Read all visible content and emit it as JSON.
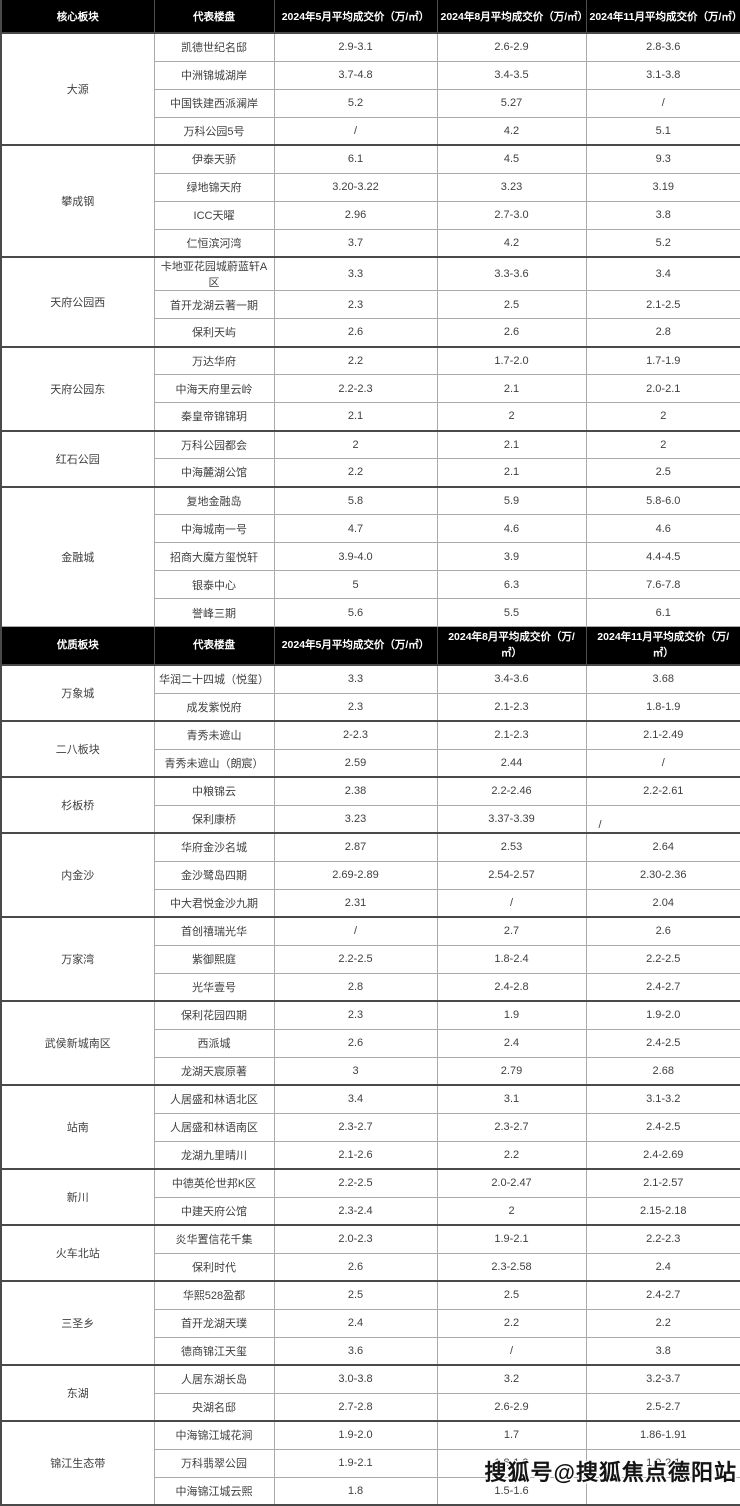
{
  "watermark": {
    "text": "搜狐号@搜狐焦点德阳站"
  },
  "chart_data": [
    {
      "type": "table",
      "columns": [
        "核心板块",
        "代表楼盘",
        "2024年5月平均成交价（万/㎡）",
        "2024年8月平均成交价（万/㎡）",
        "2024年11月平均成交价（万/㎡）"
      ],
      "groups": [
        {
          "area": "大源",
          "rows": [
            [
              "凯德世纪名邸",
              "2.9-3.1",
              "2.6-2.9",
              "2.8-3.6"
            ],
            [
              "中洲锦城湖岸",
              "3.7-4.8",
              "3.4-3.5",
              "3.1-3.8"
            ],
            [
              "中国铁建西派澜岸",
              "5.2",
              "5.27",
              "/"
            ],
            [
              "万科公园5号",
              "/",
              "4.2",
              "5.1"
            ]
          ]
        },
        {
          "area": "攀成钢",
          "rows": [
            [
              "伊泰天骄",
              "6.1",
              "4.5",
              "9.3"
            ],
            [
              "绿地锦天府",
              "3.20-3.22",
              "3.23",
              "3.19"
            ],
            [
              "ICC天曜",
              "2.96",
              "2.7-3.0",
              "3.8"
            ],
            [
              "仁恒滨河湾",
              "3.7",
              "4.2",
              "5.2"
            ]
          ]
        },
        {
          "area": "天府公园西",
          "rows": [
            [
              "卡地亚花园城蔚蓝轩A区",
              "3.3",
              "3.3-3.6",
              "3.4"
            ],
            [
              "首开龙湖云著一期",
              "2.3",
              "2.5",
              "2.1-2.5"
            ],
            [
              "保利天屿",
              "2.6",
              "2.6",
              "2.8"
            ]
          ]
        },
        {
          "area": "天府公园东",
          "rows": [
            [
              "万达华府",
              "2.2",
              "1.7-2.0",
              "1.7-1.9"
            ],
            [
              "中海天府里云岭",
              "2.2-2.3",
              "2.1",
              "2.0-2.1"
            ],
            [
              "秦皇帝锦锦玥",
              "2.1",
              "2",
              "2"
            ]
          ]
        },
        {
          "area": "红石公园",
          "rows": [
            [
              "万科公园都会",
              "2",
              "2.1",
              "2"
            ],
            [
              "中海麓湖公馆",
              "2.2",
              "2.1",
              "2.5"
            ]
          ]
        },
        {
          "area": "金融城",
          "rows": [
            [
              "复地金融岛",
              "5.8",
              "5.9",
              "5.8-6.0"
            ],
            [
              "中海城南一号",
              "4.7",
              "4.6",
              "4.6"
            ],
            [
              "招商大魔方玺悦轩",
              "3.9-4.0",
              "3.9",
              "4.4-4.5"
            ],
            [
              "银泰中心",
              "5",
              "6.3",
              "7.6-7.8"
            ],
            [
              "誉峰三期",
              "5.6",
              "5.5",
              "6.1"
            ]
          ]
        }
      ]
    },
    {
      "type": "table",
      "columns": [
        "优质板块",
        "代表楼盘",
        "2024年5月平均成交价（万/㎡）",
        "2024年8月平均成交价（万/㎡）",
        "2024年11月平均成交价（万/㎡）"
      ],
      "groups": [
        {
          "area": "万象城",
          "rows": [
            [
              "华润二十四城（悦玺）",
              "3.3",
              "3.4-3.6",
              "3.68"
            ],
            [
              "成发紫悦府",
              "2.3",
              "2.1-2.3",
              "1.8-1.9"
            ]
          ]
        },
        {
          "area": "二八板块",
          "rows": [
            [
              "青秀未遮山",
              "2-2.3",
              "2.1-2.3",
              "2.1-2.49"
            ],
            [
              "青秀未遮山（朗宸）",
              "2.59",
              "2.44",
              "/"
            ]
          ]
        },
        {
          "area": "杉板桥",
          "rows": [
            [
              "中粮锦云",
              "2.38",
              "2.2-2.46",
              "2.2-2.61"
            ],
            [
              "保利康桥",
              "3.23",
              "3.37-3.39",
              "/"
            ]
          ]
        },
        {
          "area": "内金沙",
          "rows": [
            [
              "华府金沙名城",
              "2.87",
              "2.53",
              "2.64"
            ],
            [
              "金沙鹭岛四期",
              "2.69-2.89",
              "2.54-2.57",
              "2.30-2.36"
            ],
            [
              "中大君悦金沙九期",
              "2.31",
              "/",
              "2.04"
            ]
          ]
        },
        {
          "area": "万家湾",
          "rows": [
            [
              "首创禧瑞光华",
              "/",
              "2.7",
              "2.6"
            ],
            [
              "紫御熙庭",
              "2.2-2.5",
              "1.8-2.4",
              "2.2-2.5"
            ],
            [
              "光华壹号",
              "2.8",
              "2.4-2.8",
              "2.4-2.7"
            ]
          ]
        },
        {
          "area": "武侯新城南区",
          "rows": [
            [
              "保利花园四期",
              "2.3",
              "1.9",
              "1.9-2.0"
            ],
            [
              "西派城",
              "2.6",
              "2.4",
              "2.4-2.5"
            ],
            [
              "龙湖天宸原著",
              "3",
              "2.79",
              "2.68"
            ]
          ]
        },
        {
          "area": "站南",
          "rows": [
            [
              "人居盛和林语北区",
              "3.4",
              "3.1",
              "3.1-3.2"
            ],
            [
              "人居盛和林语南区",
              "2.3-2.7",
              "2.3-2.7",
              "2.4-2.5"
            ],
            [
              "龙湖九里晴川",
              "2.1-2.6",
              "2.2",
              "2.4-2.69"
            ]
          ]
        },
        {
          "area": "新川",
          "rows": [
            [
              "中德英伦世邦K区",
              "2.2-2.5",
              "2.0-2.47",
              "2.1-2.57"
            ],
            [
              "中建天府公馆",
              "2.3-2.4",
              "2",
              "2.15-2.18"
            ]
          ]
        },
        {
          "area": "火车北站",
          "rows": [
            [
              "炎华置信花千集",
              "2.0-2.3",
              "1.9-2.1",
              "2.2-2.3"
            ],
            [
              "保利时代",
              "2.6",
              "2.3-2.58",
              "2.4"
            ]
          ]
        },
        {
          "area": "三圣乡",
          "rows": [
            [
              "华熙528盈都",
              "2.5",
              "2.5",
              "2.4-2.7"
            ],
            [
              "首开龙湖天璞",
              "2.4",
              "2.2",
              "2.2"
            ],
            [
              "德商锦江天玺",
              "3.6",
              "/",
              "3.8"
            ]
          ]
        },
        {
          "area": "东湖",
          "rows": [
            [
              "人居东湖长岛",
              "3.0-3.8",
              "3.2",
              "3.2-3.7"
            ],
            [
              "央湖名邸",
              "2.7-2.8",
              "2.6-2.9",
              "2.5-2.7"
            ]
          ]
        },
        {
          "area": "锦江生态带",
          "rows": [
            [
              "中海锦江城花涧",
              "1.9-2.0",
              "1.7",
              "1.86-1.91"
            ],
            [
              "万科翡翠公园",
              "1.9-2.1",
              "1.8-1.9",
              "1.9-2.1"
            ],
            [
              "中海锦江城云熙",
              "1.8",
              "1.5-1.6",
              ""
            ]
          ]
        }
      ]
    }
  ]
}
